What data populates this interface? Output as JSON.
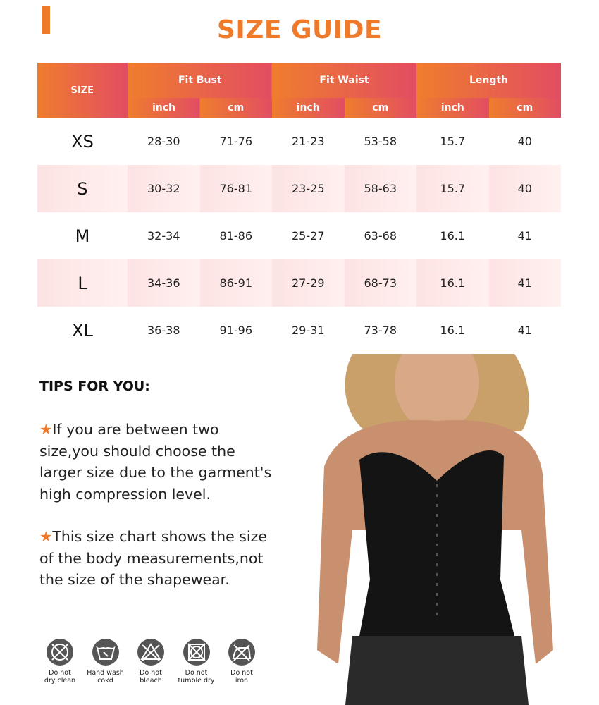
{
  "title": "SIZE GUIDE",
  "table": {
    "size_header": "SIZE",
    "groups": [
      "Fit Bust",
      "Fit Waist",
      "Length"
    ],
    "units": [
      "inch",
      "cm",
      "inch",
      "cm",
      "inch",
      "cm"
    ],
    "rows": [
      {
        "size": "XS",
        "values": [
          "28-30",
          "71-76",
          "21-23",
          "53-58",
          "15.7",
          "40"
        ]
      },
      {
        "size": "S",
        "values": [
          "30-32",
          "76-81",
          "23-25",
          "58-63",
          "15.7",
          "40"
        ]
      },
      {
        "size": "M",
        "values": [
          "32-34",
          "81-86",
          "25-27",
          "63-68",
          "16.1",
          "41"
        ]
      },
      {
        "size": "L",
        "values": [
          "34-36",
          "86-91",
          "27-29",
          "68-73",
          "16.1",
          "41"
        ]
      },
      {
        "size": "XL",
        "values": [
          "36-38",
          "91-96",
          "29-31",
          "73-78",
          "16.1",
          "41"
        ]
      }
    ]
  },
  "tips": {
    "title": "TIPS FOR YOU:",
    "star": "★",
    "items": [
      "If you are between two size,you should choose the larger size due to the garment's high compression level.",
      "This size chart shows the size of the body measurements,not the size of the shapewear."
    ]
  },
  "care": [
    {
      "icon": "no-dry-clean-icon",
      "label1": "Do not",
      "label2": "dry clean"
    },
    {
      "icon": "hand-wash-icon",
      "label1": "Hand wash",
      "label2": "cokd"
    },
    {
      "icon": "no-bleach-icon",
      "label1": "Do not",
      "label2": "bleach"
    },
    {
      "icon": "no-tumble-dry-icon",
      "label1": "Do not",
      "label2": "tumble dry"
    },
    {
      "icon": "no-iron-icon",
      "label1": "Do not",
      "label2": "iron"
    }
  ],
  "colors": {
    "accent": "#ef7a2a",
    "header_start": "#ef7d2e",
    "header_end": "#e24d62",
    "alt_row": "#fde3e3",
    "icon": "#555555"
  }
}
